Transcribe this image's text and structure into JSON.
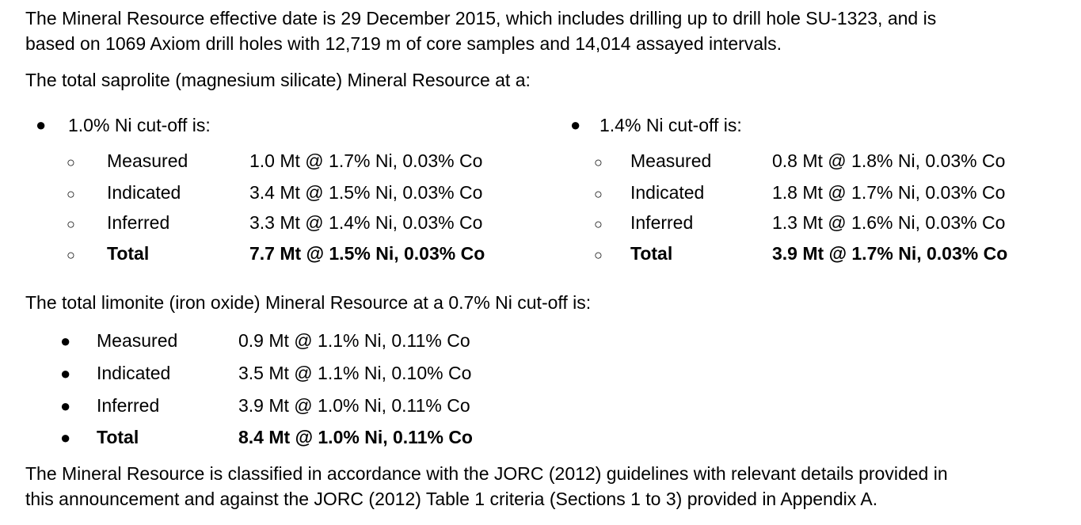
{
  "intro": {
    "line1": "The Mineral Resource effective date is 29 December 2015, which includes drilling up to drill hole SU-1323, and is",
    "line2": "based on 1069 Axiom drill holes with 12,719 m of core samples and 14,014 assayed intervals."
  },
  "saprolite": {
    "heading": "The total saprolite (magnesium silicate) Mineral Resource at a:",
    "groups": [
      {
        "cutoff": "1.0% Ni cut-off is:",
        "rows": [
          {
            "category": "Measured",
            "value": "1.0 Mt @ 1.7% Ni, 0.03% Co"
          },
          {
            "category": "Indicated",
            "value": "3.4 Mt @ 1.5% Ni, 0.03% Co"
          },
          {
            "category": "Inferred",
            "value": "3.3 Mt @ 1.4% Ni, 0.03% Co"
          },
          {
            "category": "Total",
            "value": "7.7 Mt @ 1.5% Ni, 0.03% Co"
          }
        ]
      },
      {
        "cutoff": "1.4% Ni cut-off is:",
        "rows": [
          {
            "category": "Measured",
            "value": "0.8 Mt @ 1.8% Ni, 0.03% Co"
          },
          {
            "category": "Indicated",
            "value": "1.8 Mt @ 1.7% Ni, 0.03% Co"
          },
          {
            "category": "Inferred",
            "value": "1.3 Mt @ 1.6% Ni, 0.03% Co"
          },
          {
            "category": "Total",
            "value": "3.9 Mt @ 1.7% Ni, 0.03% Co"
          }
        ]
      }
    ]
  },
  "limonite": {
    "heading": "The total limonite (iron oxide) Mineral Resource at a 0.7% Ni cut-off is:",
    "rows": [
      {
        "category": "Measured",
        "value": "0.9 Mt @ 1.1% Ni, 0.11% Co"
      },
      {
        "category": "Indicated",
        "value": "3.5 Mt @ 1.1% Ni, 0.10% Co"
      },
      {
        "category": "Inferred",
        "value": "3.9 Mt @ 1.0% Ni, 0.11% Co"
      },
      {
        "category": "Total",
        "value": "8.4 Mt @ 1.0% Ni, 0.11% Co"
      }
    ]
  },
  "closing": {
    "line1": "The Mineral Resource is classified in accordance with the JORC (2012) guidelines with relevant details provided in",
    "line2": "this announcement and against the JORC (2012) Table 1 criteria (Sections 1 to 3) provided in Appendix A."
  }
}
